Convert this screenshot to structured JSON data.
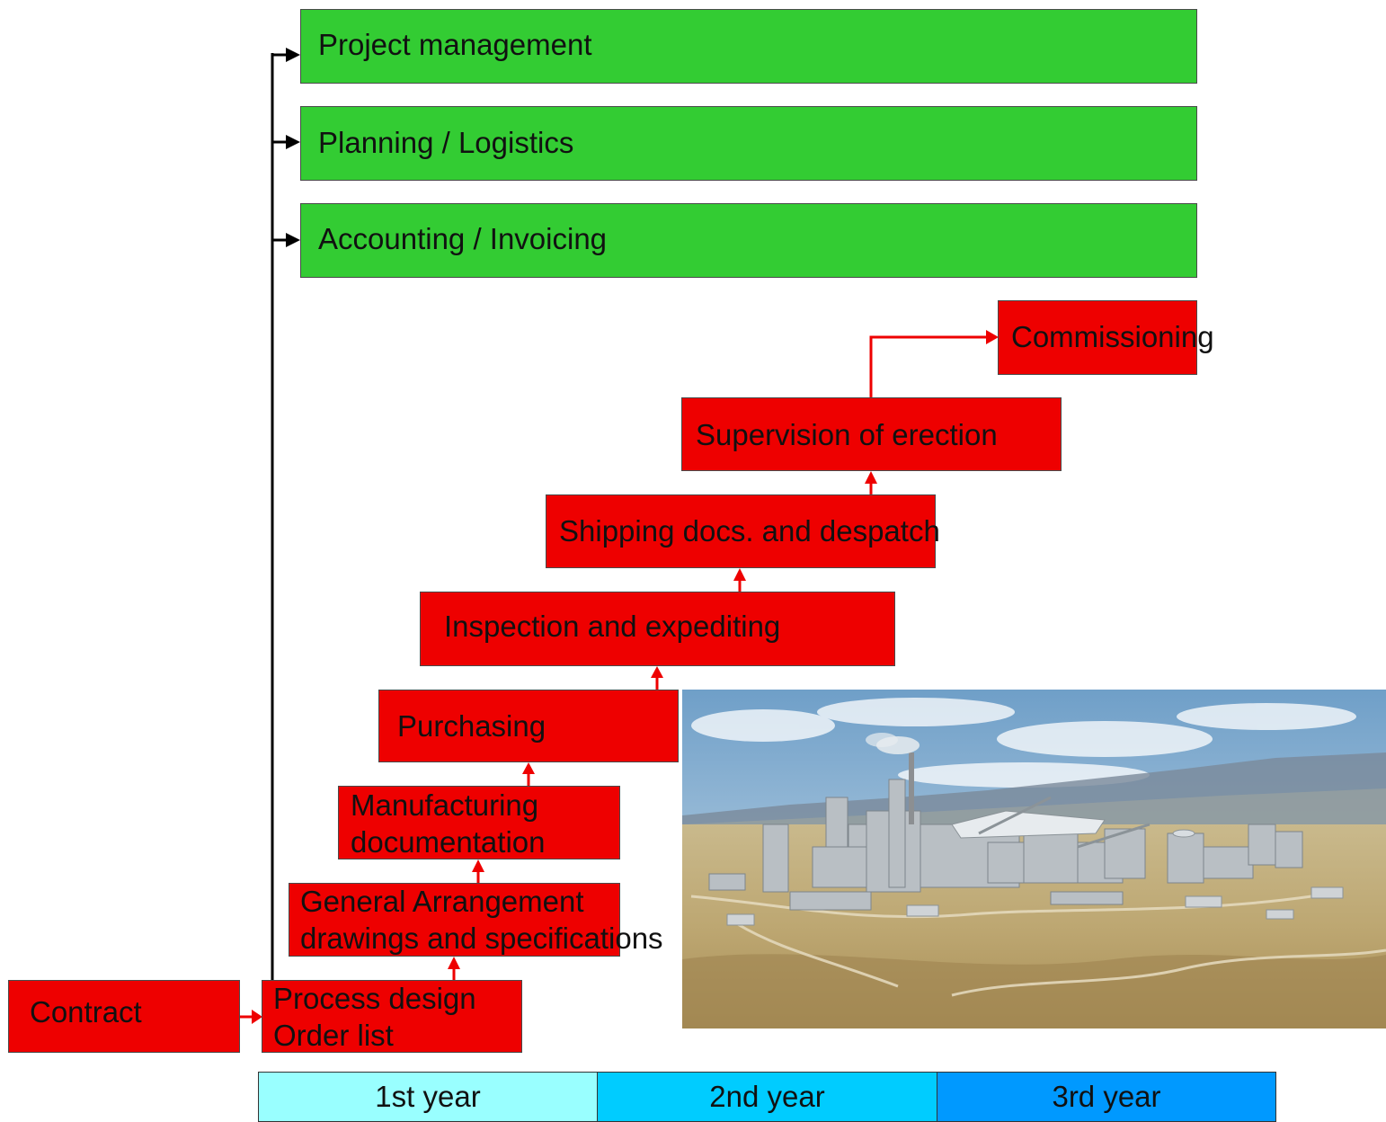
{
  "support_functions": [
    {
      "label": "Project management"
    },
    {
      "label": "Planning / Logistics"
    },
    {
      "label": "Accounting / Invoicing"
    }
  ],
  "steps": {
    "contract": "Contract",
    "process_design": [
      "Process design",
      "Order list"
    ],
    "general_arrangement": [
      "General Arrangement",
      "drawings and specifications"
    ],
    "manufacturing": [
      "Manufacturing",
      "documentation"
    ],
    "purchasing": "Purchasing",
    "inspection": "Inspection and expediting",
    "shipping": "Shipping docs. and despatch",
    "supervision": "Supervision of erection",
    "commissioning": "Commissioning"
  },
  "timeline": [
    {
      "label": "1st year",
      "color": "#99ffff"
    },
    {
      "label": "2nd year",
      "color": "#00ccff"
    },
    {
      "label": "3rd year",
      "color": "#0099ff"
    }
  ],
  "colors": {
    "support_box": "#33cc33",
    "step_box": "#ee0000",
    "flow_arrow": "#ee0000",
    "support_arrow": "#000000"
  }
}
